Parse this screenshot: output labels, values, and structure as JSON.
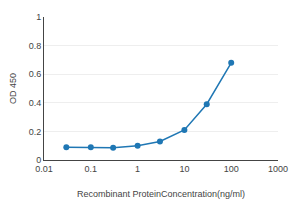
{
  "chart_data": {
    "type": "line",
    "x": [
      0.03,
      0.1,
      0.3,
      1,
      3,
      10,
      30,
      100
    ],
    "values": [
      0.09,
      0.09,
      0.085,
      0.1,
      0.13,
      0.21,
      0.39,
      0.68
    ],
    "xlabel": "Recombinant ProteinConcentration(ng/ml)",
    "ylabel": "OD 450",
    "log": "x",
    "xlim": [
      0.01,
      1000
    ],
    "xticks": [
      0.01,
      0.1,
      1,
      10,
      100,
      1000
    ],
    "ylim": [
      0,
      1
    ],
    "yticks": [
      0,
      0.2,
      0.4,
      0.6,
      0.8,
      1
    ],
    "grid": "y",
    "marker": "circle",
    "line_style": "solid"
  }
}
